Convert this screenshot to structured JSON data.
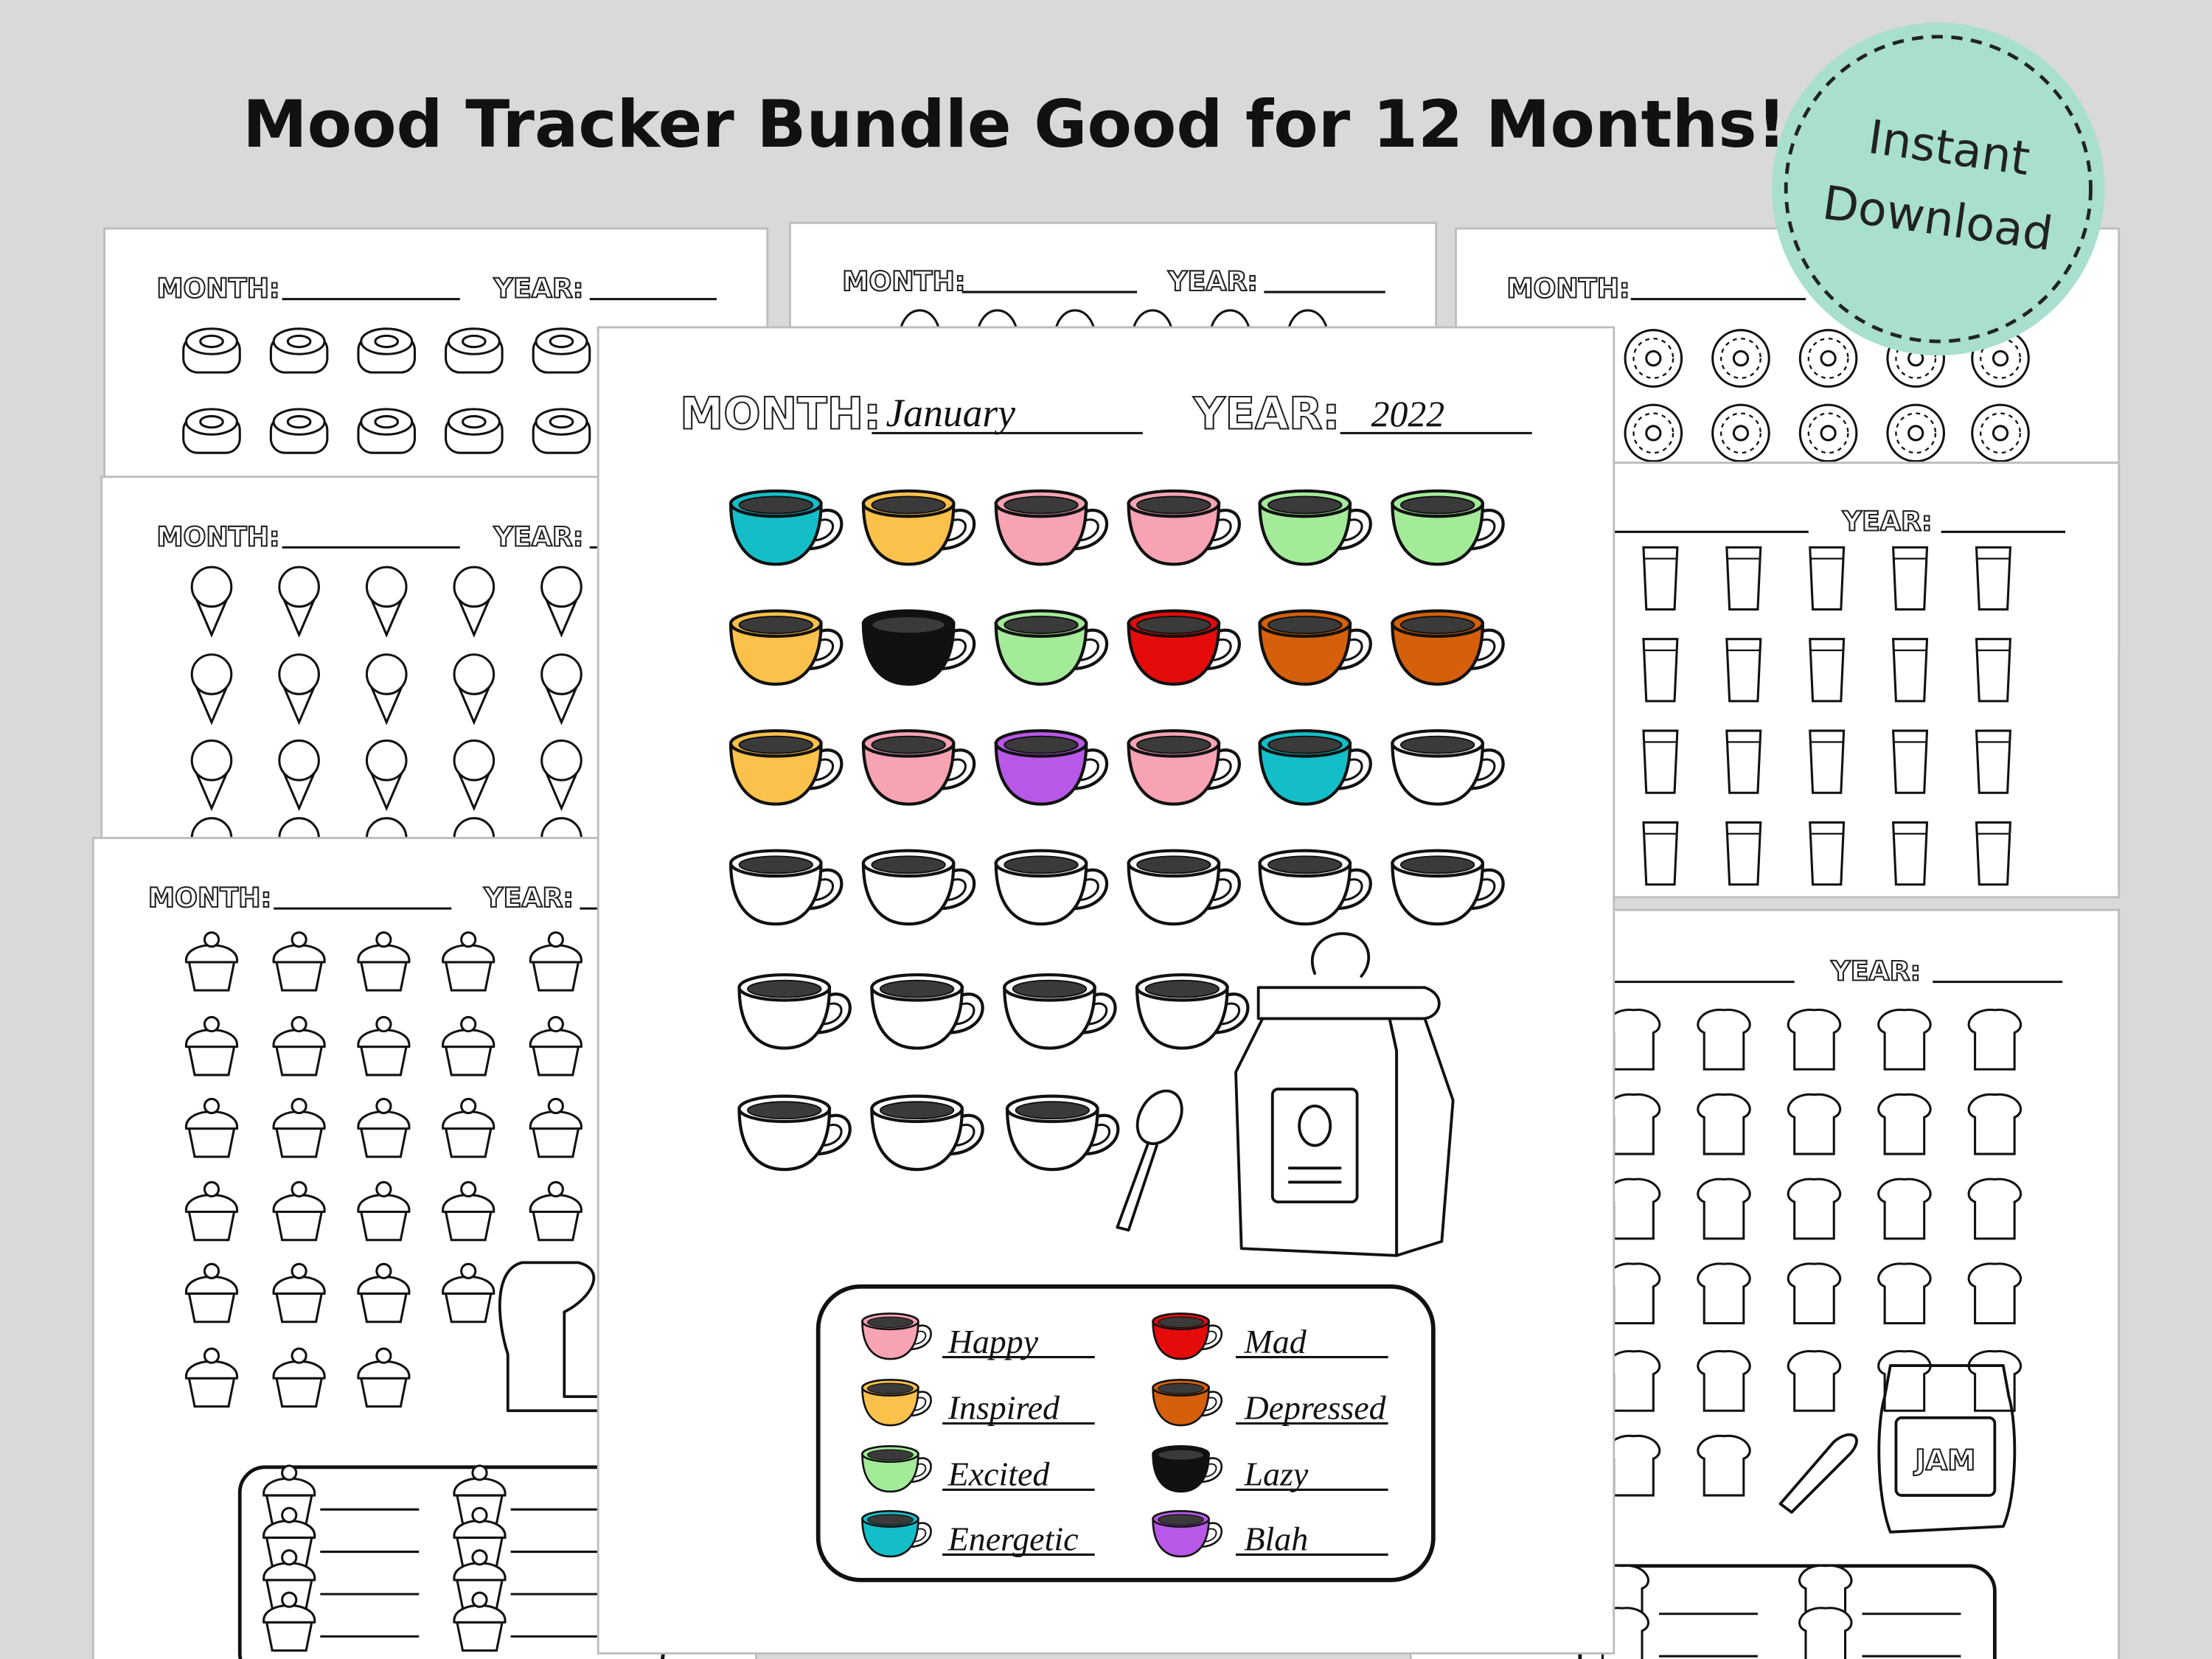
{
  "title": "Mood Tracker Bundle Good for 12 Months!",
  "badge": {
    "lines": [
      "Instant",
      "Download"
    ]
  },
  "labels": {
    "month": "MONTH:",
    "year": "YEAR:"
  },
  "jam_label": "JAM",
  "main_page": {
    "month": "January",
    "year": "2022",
    "cups": [
      "#14bec8",
      "#fcc14a",
      "#f7a3b3",
      "#f7a3b3",
      "#a3eb99",
      "#a3eb99",
      "#fcc14a",
      "#111111",
      "#a3eb99",
      "#e50b0b",
      "#d55f0a",
      "#d55f0a",
      "#fcc14a",
      "#f7a3b3",
      "#b958e8",
      "#f7a3b3",
      "#14bec8",
      null,
      null,
      null,
      null,
      null,
      null,
      null,
      null,
      null,
      null,
      null,
      null,
      null,
      null
    ],
    "legend": [
      {
        "label": "Happy",
        "color": "#f7a3b3"
      },
      {
        "label": "Inspired",
        "color": "#fcc14a"
      },
      {
        "label": "Excited",
        "color": "#a3eb99"
      },
      {
        "label": "Energetic",
        "color": "#14bec8"
      },
      {
        "label": "Mad",
        "color": "#e50b0b"
      },
      {
        "label": "Depressed",
        "color": "#d55f0a"
      },
      {
        "label": "Lazy",
        "color": "#111111"
      },
      {
        "label": "Blah",
        "color": "#b958e8"
      }
    ]
  }
}
